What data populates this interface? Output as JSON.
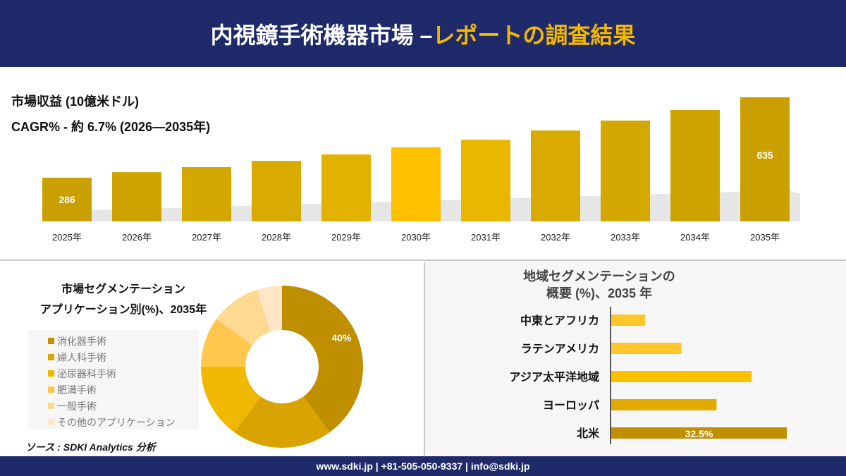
{
  "header": {
    "title_white": "内視鏡手術機器市場 –",
    "title_yellow": "レポートの調査結果"
  },
  "top": {
    "revenue_label": "市場収益 (10億米ドル)",
    "cagr_label": "CAGR% - 約 6.7% (2026—2035年)"
  },
  "pie_section": {
    "title_line1": "市場セグメンテーション",
    "title_line2": "アプリケーション別(%)、2035年",
    "source": "ソース : SDKI Analytics 分析"
  },
  "region_section": {
    "title_line1": "地域セグメンテーションの",
    "title_line2": "概要 (%)、2035 年"
  },
  "footer": {
    "text": "www.sdki.jp | +81-505-050-9337 | info@sdki.jp"
  },
  "chart_data": [
    {
      "type": "bar",
      "categories": [
        "2025年",
        "2026年",
        "2027年",
        "2028年",
        "2029年",
        "2030年",
        "2031年",
        "2032年",
        "2033年",
        "2034年",
        "2035年"
      ],
      "values": [
        286,
        310,
        332,
        359,
        387,
        418,
        451,
        491,
        534,
        580,
        635
      ],
      "data_labels": [
        "286",
        "",
        "",
        "",
        "",
        "",
        "",
        "",
        "",
        "",
        "635"
      ],
      "colors": [
        "#c9a000",
        "#cda300",
        "#d4a800",
        "#d9ab00",
        "#e2b200",
        "#ffc000",
        "#e9b600",
        "#d9ab00",
        "#d4a800",
        "#cda300",
        "#c9a000"
      ]
    },
    {
      "type": "pie",
      "donut": true,
      "categories": [
        "消化器手術",
        "婦人科手術",
        "泌尿器科手術",
        "肥満手術",
        "一般手術",
        "その他のアプリケーション"
      ],
      "values": [
        40,
        20,
        15,
        10,
        10,
        5
      ],
      "data_labels": [
        "40%",
        "",
        "",
        "",
        "",
        ""
      ],
      "colors": [
        "#bf8f00",
        "#d9a400",
        "#f0b800",
        "#ffc74d",
        "#ffd98f",
        "#ffe6c7"
      ]
    },
    {
      "type": "bar",
      "orientation": "horizontal",
      "categories": [
        "中東とアフリカ",
        "ラテンアメリカ",
        "アジア太平洋地域",
        "ヨーロッパ",
        "北米"
      ],
      "values": [
        6.3,
        13,
        26,
        19.5,
        32.5
      ],
      "data_labels": [
        "",
        "",
        "",
        "",
        "32.5%"
      ],
      "colors": [
        "#ffc62b",
        "#ffc62b",
        "#ffc000",
        "#e0aa00",
        "#bf8f00"
      ]
    }
  ]
}
